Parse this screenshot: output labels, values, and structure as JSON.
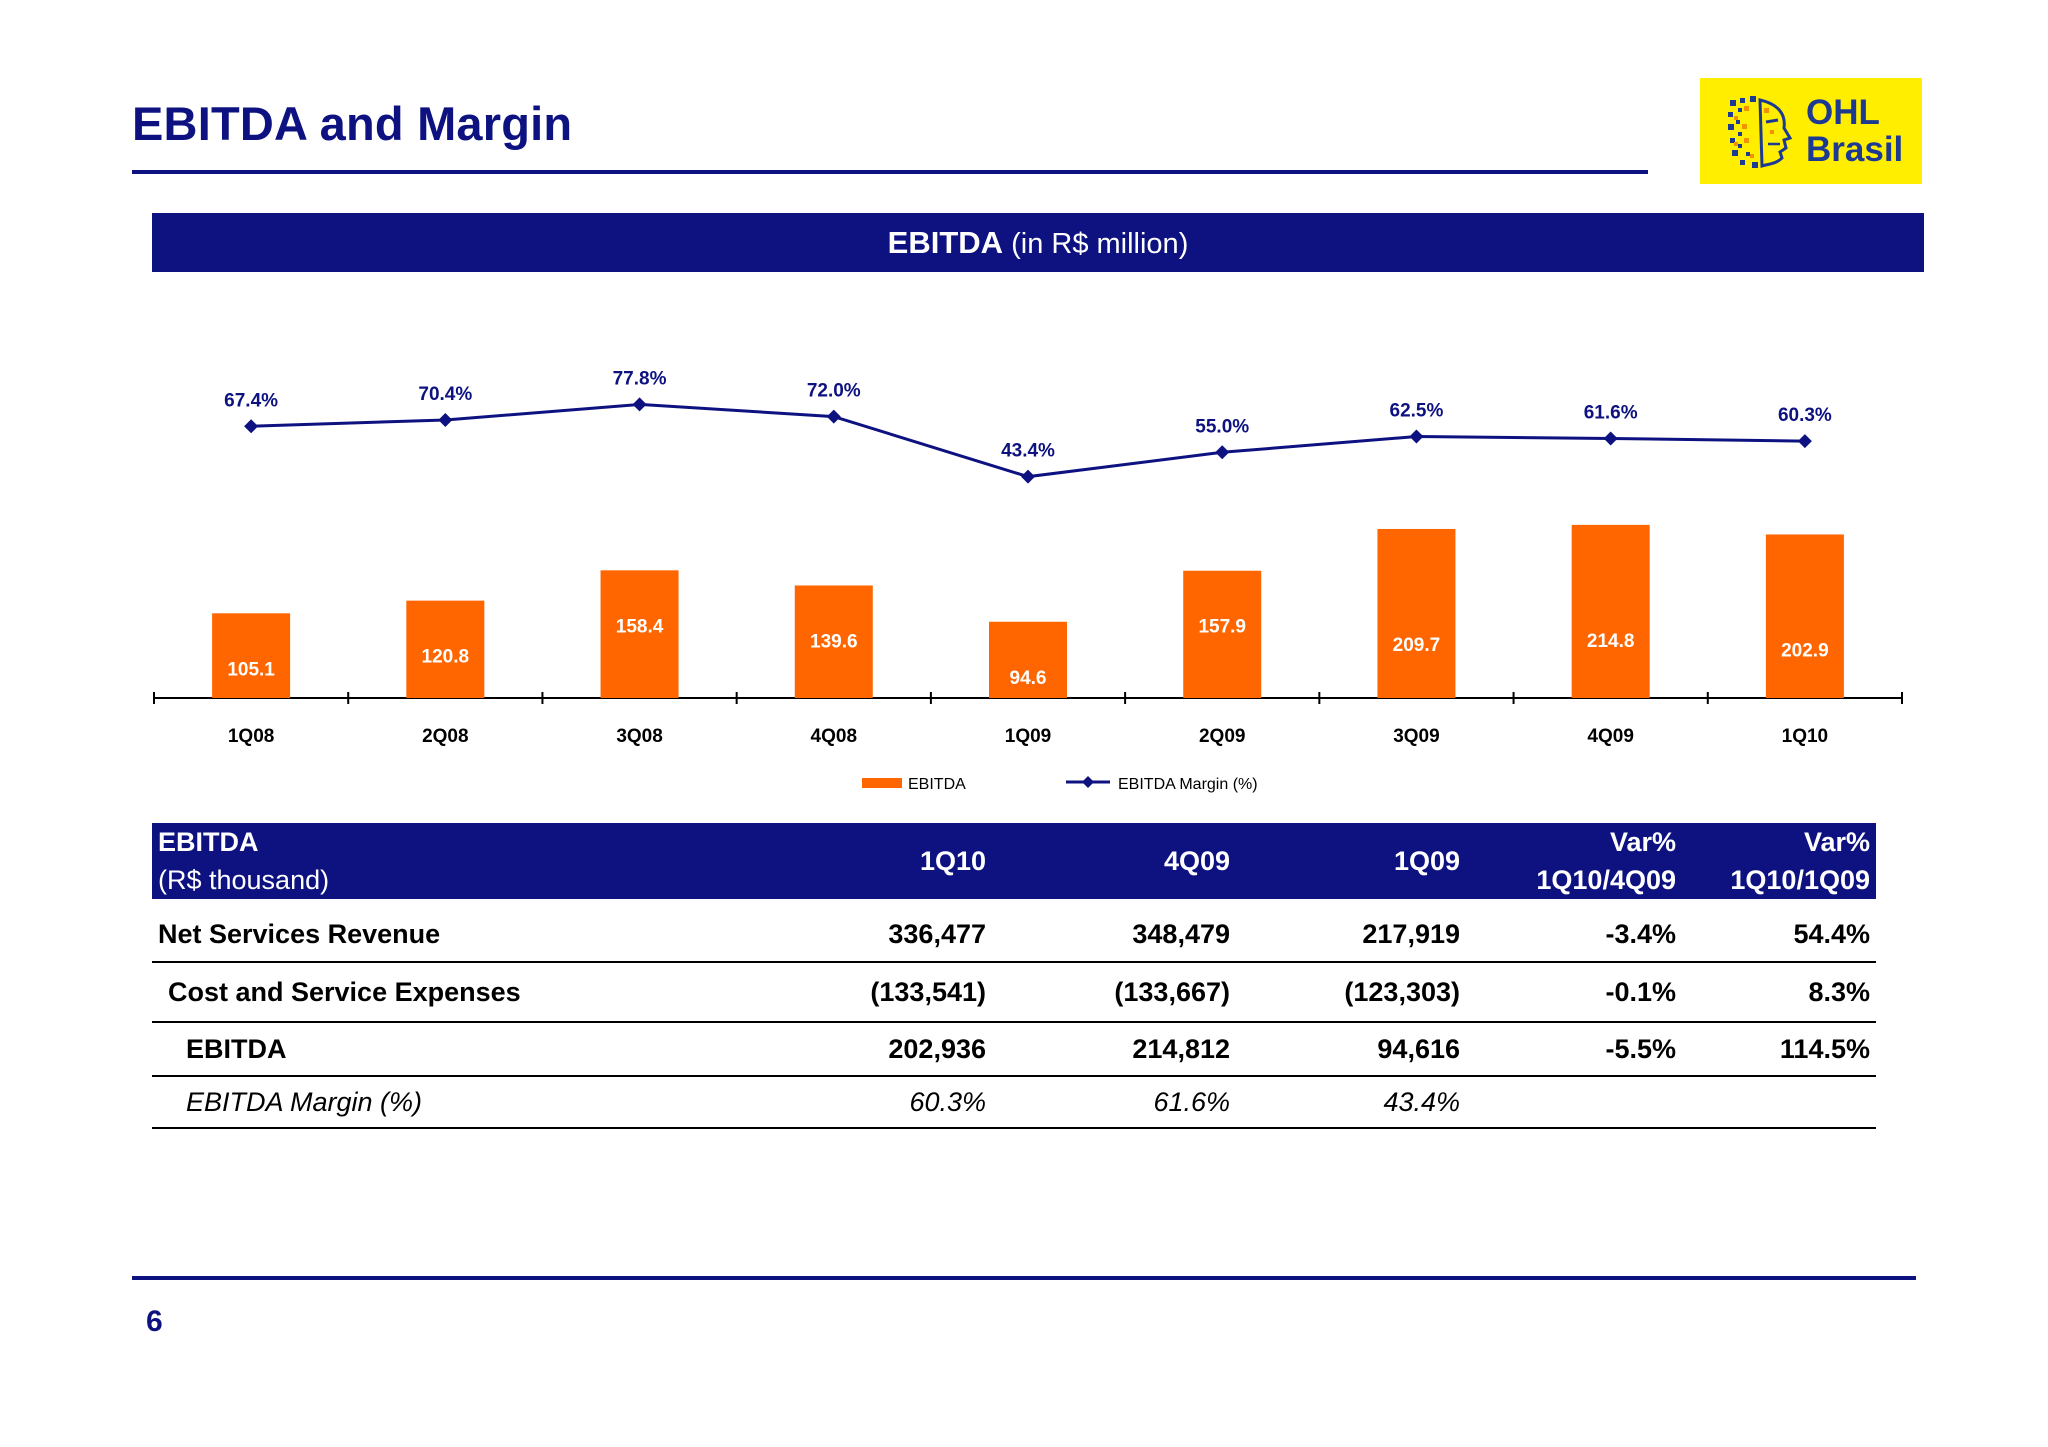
{
  "slide": {
    "title": "EBITDA and Margin",
    "page_number": "6"
  },
  "logo": {
    "line1": "OHL",
    "line2": "Brasil"
  },
  "chart_header": {
    "bold": "EBITDA",
    "rest": " (in R$ million)"
  },
  "chart_data": {
    "type": "bar",
    "categories": [
      "1Q08",
      "2Q08",
      "3Q08",
      "4Q08",
      "1Q09",
      "2Q09",
      "3Q09",
      "4Q09",
      "1Q10"
    ],
    "series": [
      {
        "name": "EBITDA",
        "type": "bar",
        "values": [
          105.1,
          120.8,
          158.4,
          139.6,
          94.6,
          157.9,
          209.7,
          214.8,
          202.9
        ],
        "labels": [
          "105.1",
          "120.8",
          "158.4",
          "139.6",
          "94.6",
          "157.9",
          "209.7",
          "214.8",
          "202.9"
        ],
        "color": "#ff6600"
      },
      {
        "name": "EBITDA Margin (%)",
        "type": "line",
        "values": [
          67.4,
          70.4,
          77.8,
          72.0,
          43.4,
          55.0,
          62.5,
          61.6,
          60.3
        ],
        "labels": [
          "67.4%",
          "70.4%",
          "77.8%",
          "72.0%",
          "43.4%",
          "55.0%",
          "62.5%",
          "61.6%",
          "60.3%"
        ],
        "color": "#0d1280"
      }
    ],
    "title": "",
    "xlabel": "",
    "ylabel": "",
    "legend_position": "bottom-center",
    "grid": false
  },
  "table": {
    "header": {
      "label_line1": "EBITDA",
      "label_line2": "(R$ thousand)",
      "col1": "1Q10",
      "col2": "4Q09",
      "col3": "1Q09",
      "var1_line1": "Var%",
      "var1_line2": "1Q10/4Q09",
      "var2_line1": "Var%",
      "var2_line2": "1Q10/1Q09"
    },
    "rows": [
      {
        "label": "Net Services Revenue",
        "c1": "336,477",
        "c2": "348,479",
        "c3": "217,919",
        "v1": "-3.4%",
        "v2": "54.4%"
      },
      {
        "label": "Cost and Service Expenses",
        "c1": "(133,541)",
        "c2": "(133,667)",
        "c3": "(123,303)",
        "v1": "-0.1%",
        "v2": "8.3%"
      },
      {
        "label": "EBITDA",
        "c1": "202,936",
        "c2": "214,812",
        "c3": "94,616",
        "v1": "-5.5%",
        "v2": "114.5%"
      },
      {
        "label": "EBITDA Margin (%)",
        "c1": "60.3%",
        "c2": "61.6%",
        "c3": "43.4%",
        "v1": "",
        "v2": ""
      }
    ]
  }
}
